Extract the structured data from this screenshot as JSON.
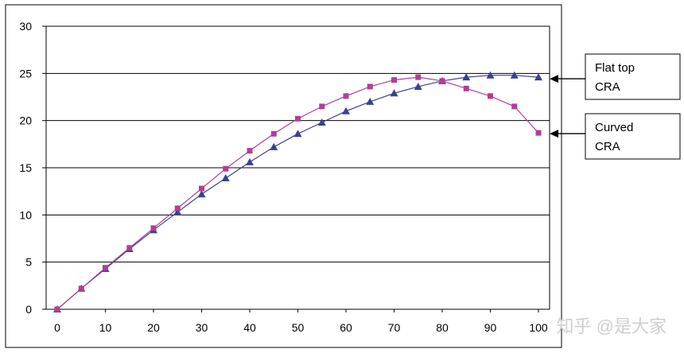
{
  "chart_data": {
    "type": "line",
    "title": "",
    "xlabel": "",
    "ylabel": "",
    "xlim": [
      0,
      100
    ],
    "ylim": [
      0,
      30
    ],
    "x_ticks": [
      "0",
      "10",
      "20",
      "30",
      "40",
      "50",
      "60",
      "70",
      "80",
      "90",
      "100"
    ],
    "y_ticks": [
      "0",
      "5",
      "10",
      "15",
      "20",
      "25",
      "30"
    ],
    "grid": "horizontal",
    "legend": "right, outside plot, boxed labels with arrows",
    "series": [
      {
        "name": "Flat top CRA",
        "label_lines": [
          "Flat top",
          "CRA"
        ],
        "color": "#3b3f93",
        "marker": "triangle",
        "x": [
          0,
          5,
          10,
          15,
          20,
          25,
          30,
          35,
          40,
          45,
          50,
          55,
          60,
          65,
          70,
          75,
          80,
          85,
          90,
          95,
          100
        ],
        "y": [
          0,
          2.2,
          4.3,
          6.4,
          8.4,
          10.3,
          12.2,
          13.9,
          15.6,
          17.2,
          18.6,
          19.8,
          21.0,
          22.0,
          22.9,
          23.6,
          24.2,
          24.6,
          24.8,
          24.8,
          24.6
        ]
      },
      {
        "name": "Curved CRA",
        "label_lines": [
          "Curved",
          "CRA"
        ],
        "color": "#b03f93",
        "marker": "square",
        "x": [
          0,
          5,
          10,
          15,
          20,
          25,
          30,
          35,
          40,
          45,
          50,
          55,
          60,
          65,
          70,
          75,
          80,
          85,
          90,
          95,
          100
        ],
        "y": [
          0,
          2.2,
          4.4,
          6.5,
          8.6,
          10.7,
          12.8,
          14.9,
          16.8,
          18.6,
          20.2,
          21.5,
          22.6,
          23.6,
          24.3,
          24.6,
          24.2,
          23.4,
          22.6,
          21.5,
          18.7
        ]
      }
    ]
  },
  "watermark": "知乎 @是大家"
}
